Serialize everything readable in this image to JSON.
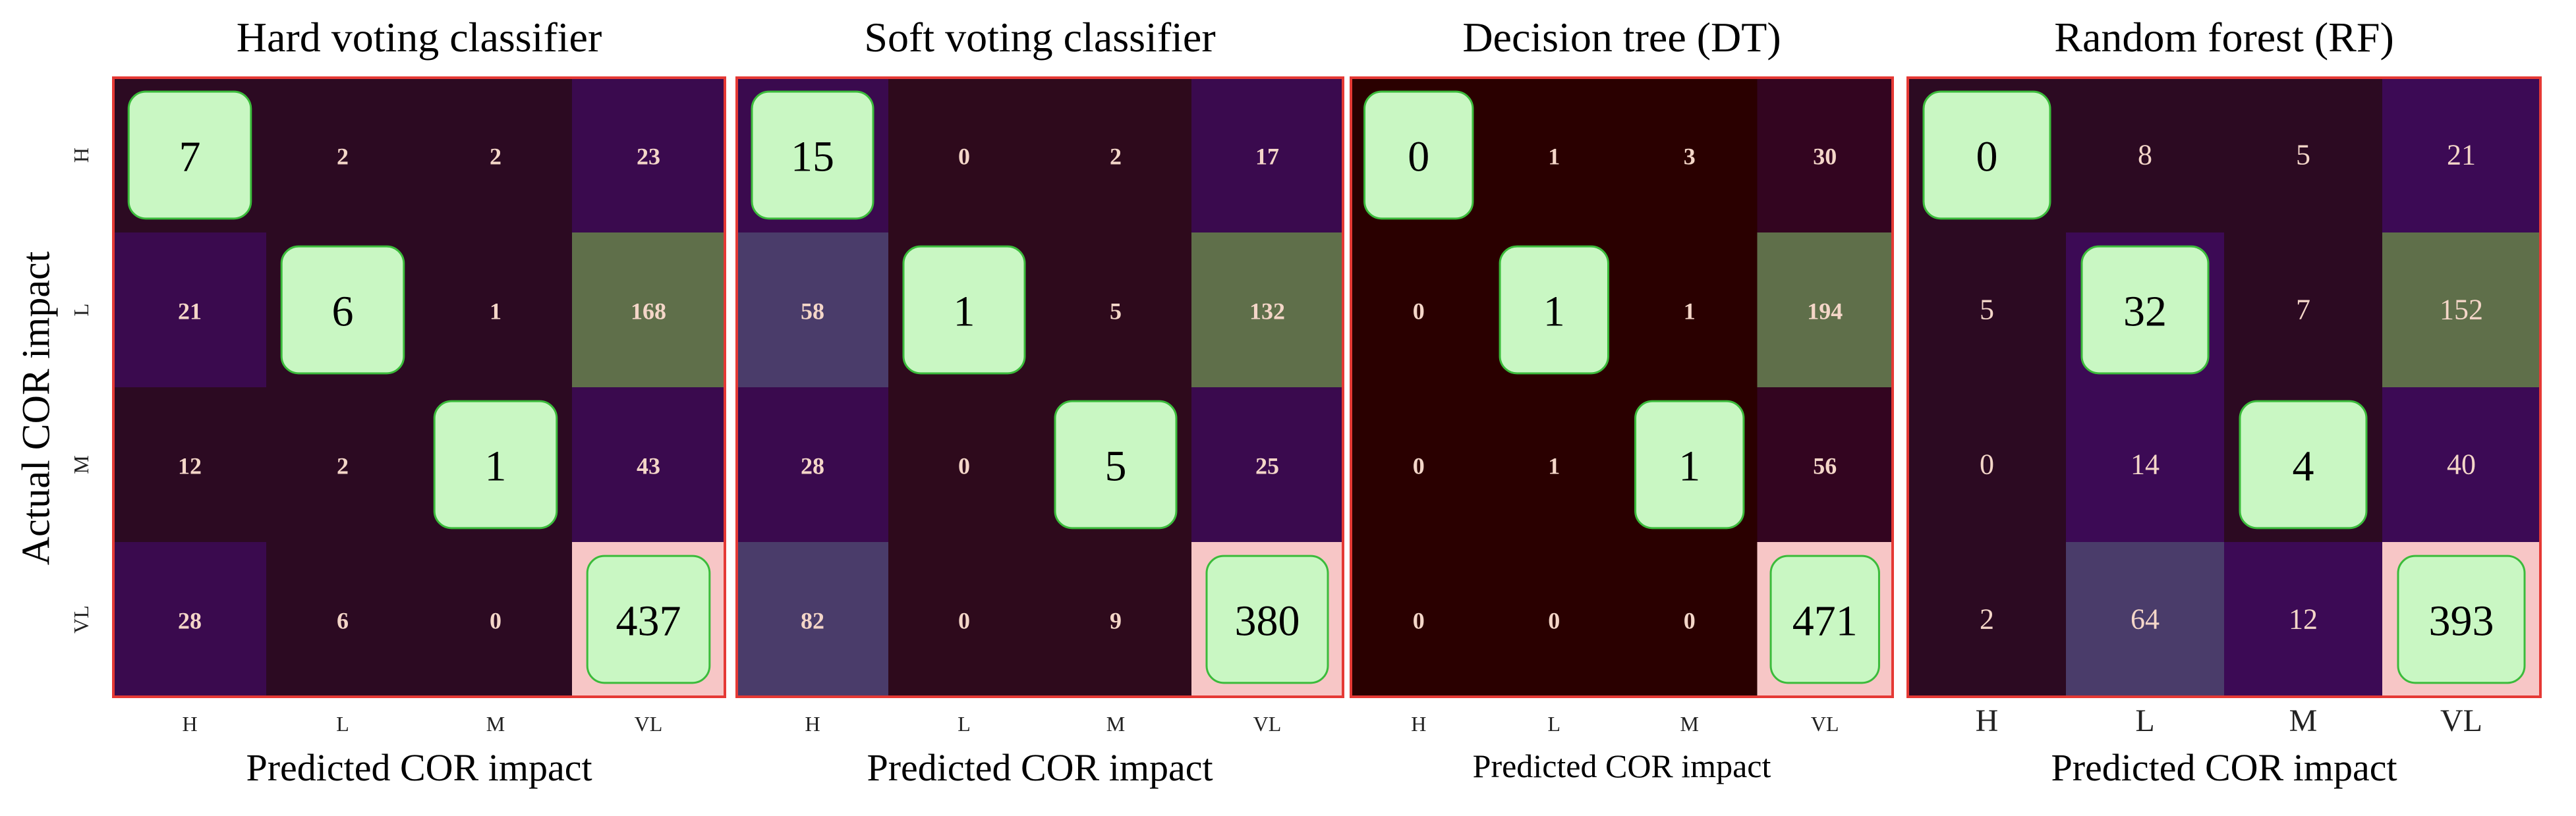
{
  "figure": {
    "ylabel": "Actual COR impact"
  },
  "chart_data": [
    {
      "type": "heatmap",
      "title": "Hard voting classifier",
      "xlabel": "Predicted COR impact",
      "ylabel": "Actual COR impact",
      "x_categories": [
        "H",
        "L",
        "M",
        "VL"
      ],
      "y_categories": [
        "H",
        "L",
        "M",
        "VL"
      ],
      "values": [
        [
          7,
          2,
          2,
          23
        ],
        [
          21,
          6,
          1,
          168
        ],
        [
          12,
          2,
          1,
          43
        ],
        [
          28,
          6,
          0,
          437
        ]
      ]
    },
    {
      "type": "heatmap",
      "title": "Soft voting classifier",
      "xlabel": "Predicted COR impact",
      "ylabel": "Actual COR impact",
      "x_categories": [
        "H",
        "L",
        "M",
        "VL"
      ],
      "y_categories": [
        "H",
        "L",
        "M",
        "VL"
      ],
      "values": [
        [
          15,
          0,
          2,
          17
        ],
        [
          58,
          1,
          5,
          132
        ],
        [
          28,
          0,
          5,
          25
        ],
        [
          82,
          0,
          9,
          380
        ]
      ]
    },
    {
      "type": "heatmap",
      "title": "Decision tree (DT)",
      "xlabel": "Predicted COR impact",
      "ylabel": "Actual COR impact",
      "x_categories": [
        "H",
        "L",
        "M",
        "VL"
      ],
      "y_categories": [
        "H",
        "L",
        "M",
        "VL"
      ],
      "values": [
        [
          0,
          1,
          3,
          30
        ],
        [
          0,
          1,
          1,
          194
        ],
        [
          0,
          1,
          1,
          56
        ],
        [
          0,
          0,
          0,
          471
        ]
      ]
    },
    {
      "type": "heatmap",
      "title": "Random forest (RF)",
      "xlabel": "Predicted COR impact",
      "ylabel": "Actual COR impact",
      "x_categories": [
        "H",
        "L",
        "M",
        "VL"
      ],
      "y_categories": [
        "H",
        "L",
        "M",
        "VL"
      ],
      "values": [
        [
          0,
          8,
          5,
          21
        ],
        [
          5,
          32,
          7,
          152
        ],
        [
          0,
          14,
          4,
          40
        ],
        [
          2,
          64,
          12,
          393
        ]
      ]
    }
  ],
  "colors": {
    "diagonal_box": "#c9f7c3",
    "diagonal_border": "#3bbb3b",
    "panel_border": "#e53935",
    "cell_text": "#f4d6c8",
    "highlight_green": "#5f6f4a",
    "highlight_pink": "#f7c6c6"
  }
}
